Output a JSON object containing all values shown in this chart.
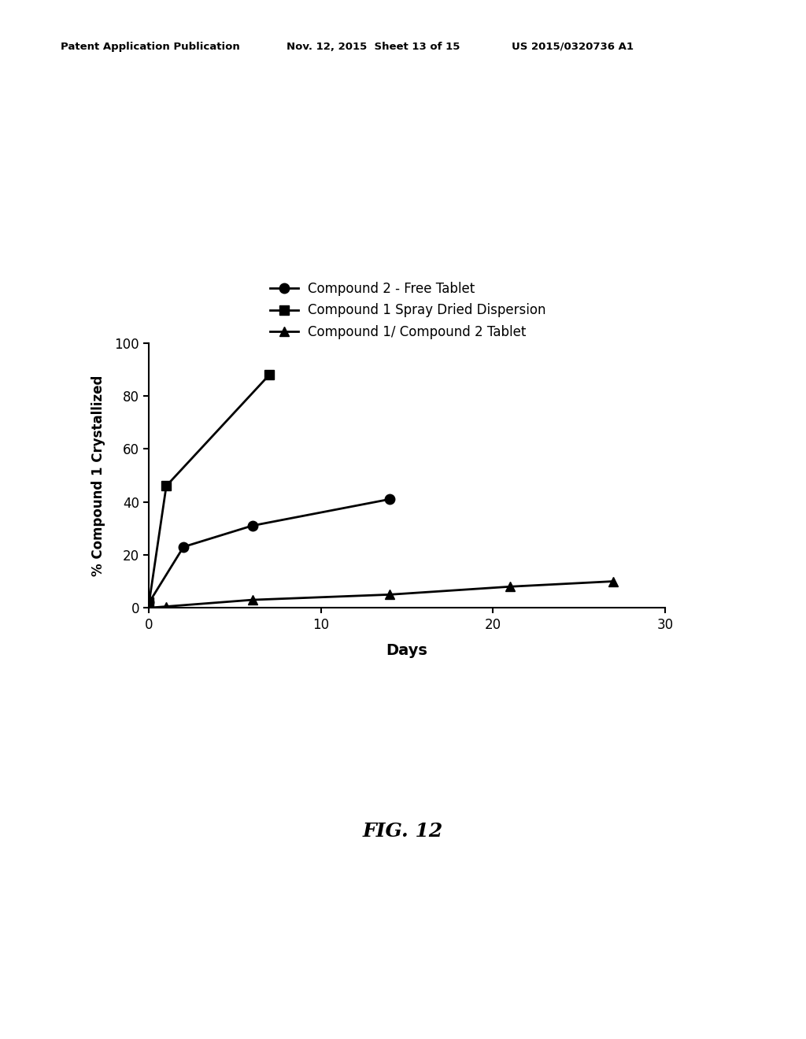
{
  "series": [
    {
      "label": "Compound 2 - Free Tablet",
      "x": [
        0,
        2,
        6,
        14
      ],
      "y": [
        2,
        23,
        31,
        41
      ],
      "marker": "o",
      "color": "#000000"
    },
    {
      "label": "Compound 1 Spray Dried Dispersion",
      "x": [
        0,
        1,
        7
      ],
      "y": [
        2,
        46,
        88
      ],
      "marker": "s",
      "color": "#000000"
    },
    {
      "label": "Compound 1/ Compound 2 Tablet",
      "x": [
        0,
        1,
        6,
        14,
        21,
        27
      ],
      "y": [
        0,
        0.5,
        3,
        5,
        8,
        10
      ],
      "marker": "^",
      "color": "#000000"
    }
  ],
  "xlabel": "Days",
  "ylabel": "% Compound 1 Crystallized",
  "xlim": [
    0,
    30
  ],
  "ylim": [
    0,
    100
  ],
  "xticks": [
    0,
    10,
    20,
    30
  ],
  "yticks": [
    0,
    20,
    40,
    60,
    80,
    100
  ],
  "header_left": "Patent Application Publication",
  "header_mid": "Nov. 12, 2015  Sheet 13 of 15",
  "header_right": "US 2015/0320736 A1",
  "figure_label": "FIG. 12",
  "background_color": "#ffffff",
  "line_width": 2.0,
  "marker_size": 9
}
